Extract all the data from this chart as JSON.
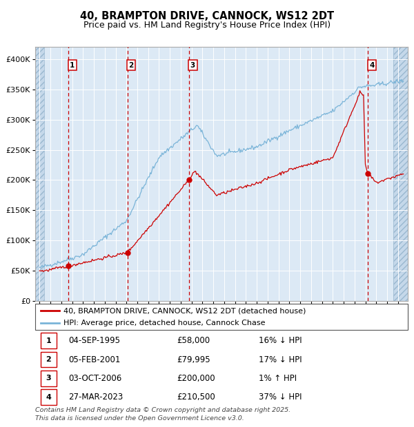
{
  "title": "40, BRAMPTON DRIVE, CANNOCK, WS12 2DT",
  "subtitle": "Price paid vs. HM Land Registry's House Price Index (HPI)",
  "ylim": [
    0,
    420000
  ],
  "yticks": [
    0,
    50000,
    100000,
    150000,
    200000,
    250000,
    300000,
    350000,
    400000
  ],
  "ytick_labels": [
    "£0",
    "£50K",
    "£100K",
    "£150K",
    "£200K",
    "£250K",
    "£300K",
    "£350K",
    "£400K"
  ],
  "hpi_color": "#7ab4d8",
  "price_color": "#cc0000",
  "background_color": "#dce9f5",
  "grid_color": "#ffffff",
  "vline_color": "#cc0000",
  "xlim_start": 1992.6,
  "xlim_end": 2026.9,
  "hatch_left_end": 1993.45,
  "hatch_right_start": 2025.55,
  "purchases": [
    {
      "num": 1,
      "date_x": 1995.67,
      "price": 58000
    },
    {
      "num": 2,
      "date_x": 2001.09,
      "price": 79995
    },
    {
      "num": 3,
      "date_x": 2006.75,
      "price": 200000
    },
    {
      "num": 4,
      "date_x": 2023.24,
      "price": 210500
    }
  ],
  "legend_label_price": "40, BRAMPTON DRIVE, CANNOCK, WS12 2DT (detached house)",
  "legend_label_hpi": "HPI: Average price, detached house, Cannock Chase",
  "table_rows": [
    {
      "num": 1,
      "date": "04-SEP-1995",
      "price": "£58,000",
      "hpi": "16% ↓ HPI"
    },
    {
      "num": 2,
      "date": "05-FEB-2001",
      "price": "£79,995",
      "hpi": "17% ↓ HPI"
    },
    {
      "num": 3,
      "date": "03-OCT-2006",
      "price": "£200,000",
      "hpi": "1% ↑ HPI"
    },
    {
      "num": 4,
      "date": "27-MAR-2023",
      "price": "£210,500",
      "hpi": "37% ↓ HPI"
    }
  ],
  "footer": "Contains HM Land Registry data © Crown copyright and database right 2025.\nThis data is licensed under the Open Government Licence v3.0."
}
